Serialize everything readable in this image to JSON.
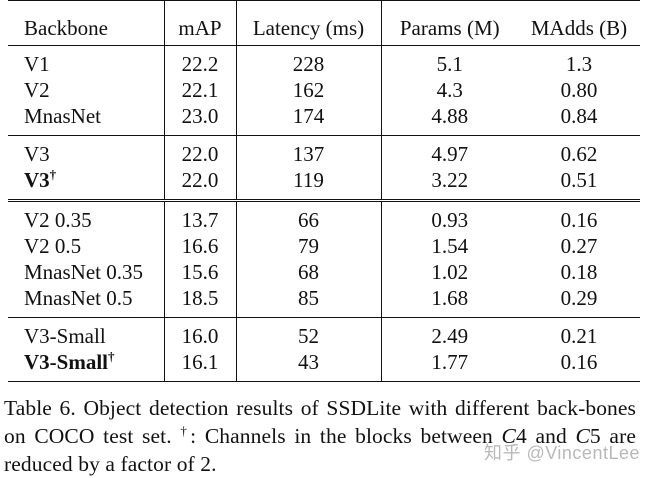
{
  "table": {
    "headers": [
      "Backbone",
      "mAP",
      "Latency (ms)",
      "Params (M)",
      "MAdds (B)"
    ],
    "groups": [
      {
        "rows": [
          {
            "backbone": "V1",
            "mark": "",
            "bold": false,
            "values": [
              "22.2",
              "228",
              "5.1",
              "1.3"
            ]
          },
          {
            "backbone": "V2",
            "mark": "",
            "bold": false,
            "values": [
              "22.1",
              "162",
              "4.3",
              "0.80"
            ]
          },
          {
            "backbone": "MnasNet",
            "mark": "",
            "bold": false,
            "values": [
              "23.0",
              "174",
              "4.88",
              "0.84"
            ]
          }
        ]
      },
      {
        "rows": [
          {
            "backbone": "V3",
            "mark": "",
            "bold": false,
            "values": [
              "22.0",
              "137",
              "4.97",
              "0.62"
            ]
          },
          {
            "backbone": "V3",
            "mark": "†",
            "bold": true,
            "values": [
              "22.0",
              "119",
              "3.22",
              "0.51"
            ]
          }
        ]
      },
      {
        "rows": [
          {
            "backbone": "V2 0.35",
            "mark": "",
            "bold": false,
            "values": [
              "13.7",
              "66",
              "0.93",
              "0.16"
            ]
          },
          {
            "backbone": "V2 0.5",
            "mark": "",
            "bold": false,
            "values": [
              "16.6",
              "79",
              "1.54",
              "0.27"
            ]
          },
          {
            "backbone": "MnasNet 0.35",
            "mark": "",
            "bold": false,
            "values": [
              "15.6",
              "68",
              "1.02",
              "0.18"
            ]
          },
          {
            "backbone": "MnasNet 0.5",
            "mark": "",
            "bold": false,
            "values": [
              "18.5",
              "85",
              "1.68",
              "0.29"
            ]
          }
        ]
      },
      {
        "rows": [
          {
            "backbone": "V3-Small",
            "mark": "",
            "bold": false,
            "values": [
              "16.0",
              "52",
              "2.49",
              "0.21"
            ]
          },
          {
            "backbone": "V3-Small",
            "mark": "†",
            "bold": true,
            "values": [
              "16.1",
              "43",
              "1.77",
              "0.16"
            ]
          }
        ]
      }
    ]
  },
  "caption": {
    "part1": "Table 6. Object detection results of SSDLite with different back-bones on COCO test set.",
    "dagger": "†",
    "part2": ": Channels in the blocks between",
    "c4": "C",
    "c4num": "4",
    "and": "and",
    "c5": "C",
    "c5num": "5",
    "part3": "are reduced by a factor of 2."
  },
  "watermark": "知乎 @VincentLee"
}
